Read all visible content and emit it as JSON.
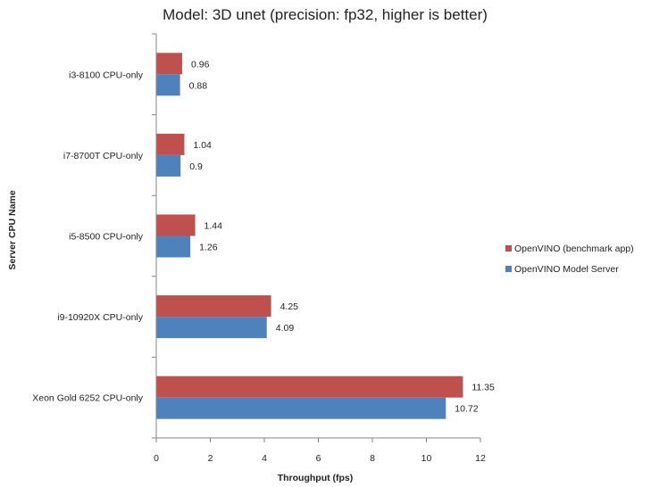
{
  "chart_data": {
    "type": "bar",
    "orientation": "horizontal",
    "title": "Model: 3D unet (precision: fp32, higher is better)",
    "xlabel": "Throughput (fps)",
    "ylabel": "Server CPU Name",
    "xlim": [
      0,
      12
    ],
    "xticks": [
      0,
      2,
      4,
      6,
      8,
      10,
      12
    ],
    "grid": false,
    "legend_position": "right",
    "categories": [
      "i3-8100 CPU-only",
      "i7-8700T CPU-only",
      "i5-8500 CPU-only",
      "i9-10920X CPU-only",
      "Xeon Gold 6252 CPU-only"
    ],
    "series": [
      {
        "name": "OpenVINO (benchmark app)",
        "color": "#c0504d",
        "values": [
          0.96,
          1.04,
          1.44,
          4.25,
          11.35
        ]
      },
      {
        "name": "OpenVINO Model Server",
        "color": "#4f81bd",
        "values": [
          0.88,
          0.9,
          1.26,
          4.09,
          10.72
        ]
      }
    ]
  }
}
